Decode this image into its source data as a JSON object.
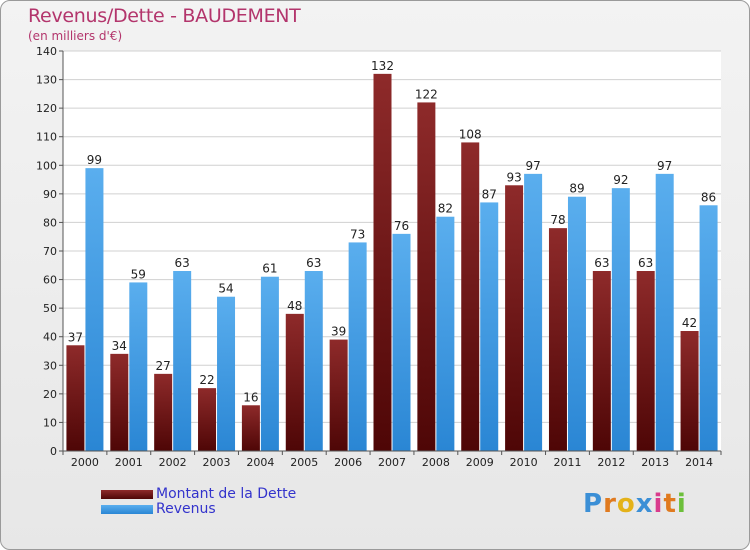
{
  "header": {
    "title": "Revenus/Dette - BAUDEMENT",
    "subtitle": "(en milliers d'€)"
  },
  "colors": {
    "debt": "#6e1515",
    "revenue": "#3e9be6",
    "title": "#b3356c",
    "legend_text": "#3333cc"
  },
  "chart_data": {
    "type": "bar",
    "categories": [
      "2000",
      "2001",
      "2002",
      "2003",
      "2004",
      "2005",
      "2006",
      "2007",
      "2008",
      "2009",
      "2010",
      "2011",
      "2012",
      "2013",
      "2014"
    ],
    "series": [
      {
        "name": "Montant de la Dette",
        "values": [
          37,
          34,
          27,
          22,
          16,
          48,
          39,
          132,
          122,
          108,
          93,
          78,
          63,
          63,
          42
        ]
      },
      {
        "name": "Revenus",
        "values": [
          99,
          59,
          63,
          54,
          61,
          63,
          73,
          76,
          82,
          87,
          97,
          89,
          92,
          97,
          86
        ]
      }
    ],
    "ylim": [
      0,
      140
    ],
    "yticks": [
      0,
      10,
      20,
      30,
      40,
      50,
      60,
      70,
      80,
      90,
      100,
      110,
      120,
      130,
      140
    ],
    "grid": true,
    "legend_position": "bottom-left"
  },
  "legend": {
    "items": [
      {
        "label": "Montant de la Dette"
      },
      {
        "label": "Revenus"
      }
    ]
  },
  "logo": {
    "letters": [
      "P",
      "r",
      "o",
      "x",
      "i",
      "t",
      "i"
    ],
    "letter_colors": [
      "#3b8fd6",
      "#e07a1f",
      "#e4b21a",
      "#3b8fd6",
      "#d93b8c",
      "#e07a1f",
      "#6cbf3a"
    ]
  }
}
